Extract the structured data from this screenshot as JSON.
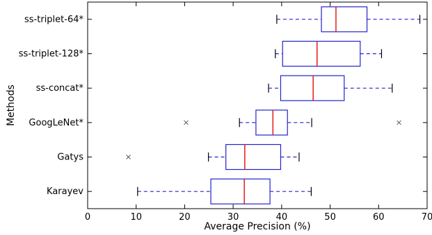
{
  "chart_data": {
    "type": "boxplot",
    "orientation": "horizontal",
    "title": "",
    "xlabel": "Average Precision (%)",
    "ylabel": "Methods",
    "xlim": [
      0,
      70
    ],
    "xticks": [
      "0",
      "10",
      "20",
      "30",
      "40",
      "50",
      "60",
      "70"
    ],
    "grid": false,
    "categories": [
      "ss-triplet-64*",
      "ss-triplet-128*",
      "ss-concat*",
      "GoogLeNet*",
      "Gatys",
      "Karayev"
    ],
    "boxes": [
      {
        "name": "ss-triplet-64*",
        "whisker_low": 39,
        "q1": 48.2,
        "median": 51.2,
        "q3": 57.6,
        "whisker_high": 68.5,
        "outliers": []
      },
      {
        "name": "ss-triplet-128*",
        "whisker_low": 38.7,
        "q1": 40.2,
        "median": 47.3,
        "q3": 56.2,
        "whisker_high": 60.6,
        "outliers": []
      },
      {
        "name": "ss-concat*",
        "whisker_low": 37.3,
        "q1": 39.8,
        "median": 46.5,
        "q3": 52.9,
        "whisker_high": 62.8,
        "outliers": []
      },
      {
        "name": "GoogLeNet*",
        "whisker_low": 31.3,
        "q1": 34.7,
        "median": 38.2,
        "q3": 41.2,
        "whisker_high": 46.2,
        "outliers": [
          20.3,
          64.2
        ]
      },
      {
        "name": "Gatys",
        "whisker_low": 24.9,
        "q1": 28.5,
        "median": 32.4,
        "q3": 39.8,
        "whisker_high": 43.6,
        "outliers": [
          8.4
        ]
      },
      {
        "name": "Karayev",
        "whisker_low": 10.3,
        "q1": 25.4,
        "median": 32.3,
        "q3": 37.6,
        "whisker_high": 46.1,
        "outliers": []
      }
    ],
    "colors": {
      "box": "#2222cc",
      "median": "#e41a1c",
      "whisker": "#2222cc",
      "cap": "#000000",
      "outlier": "#555555",
      "axis": "#000000"
    }
  }
}
